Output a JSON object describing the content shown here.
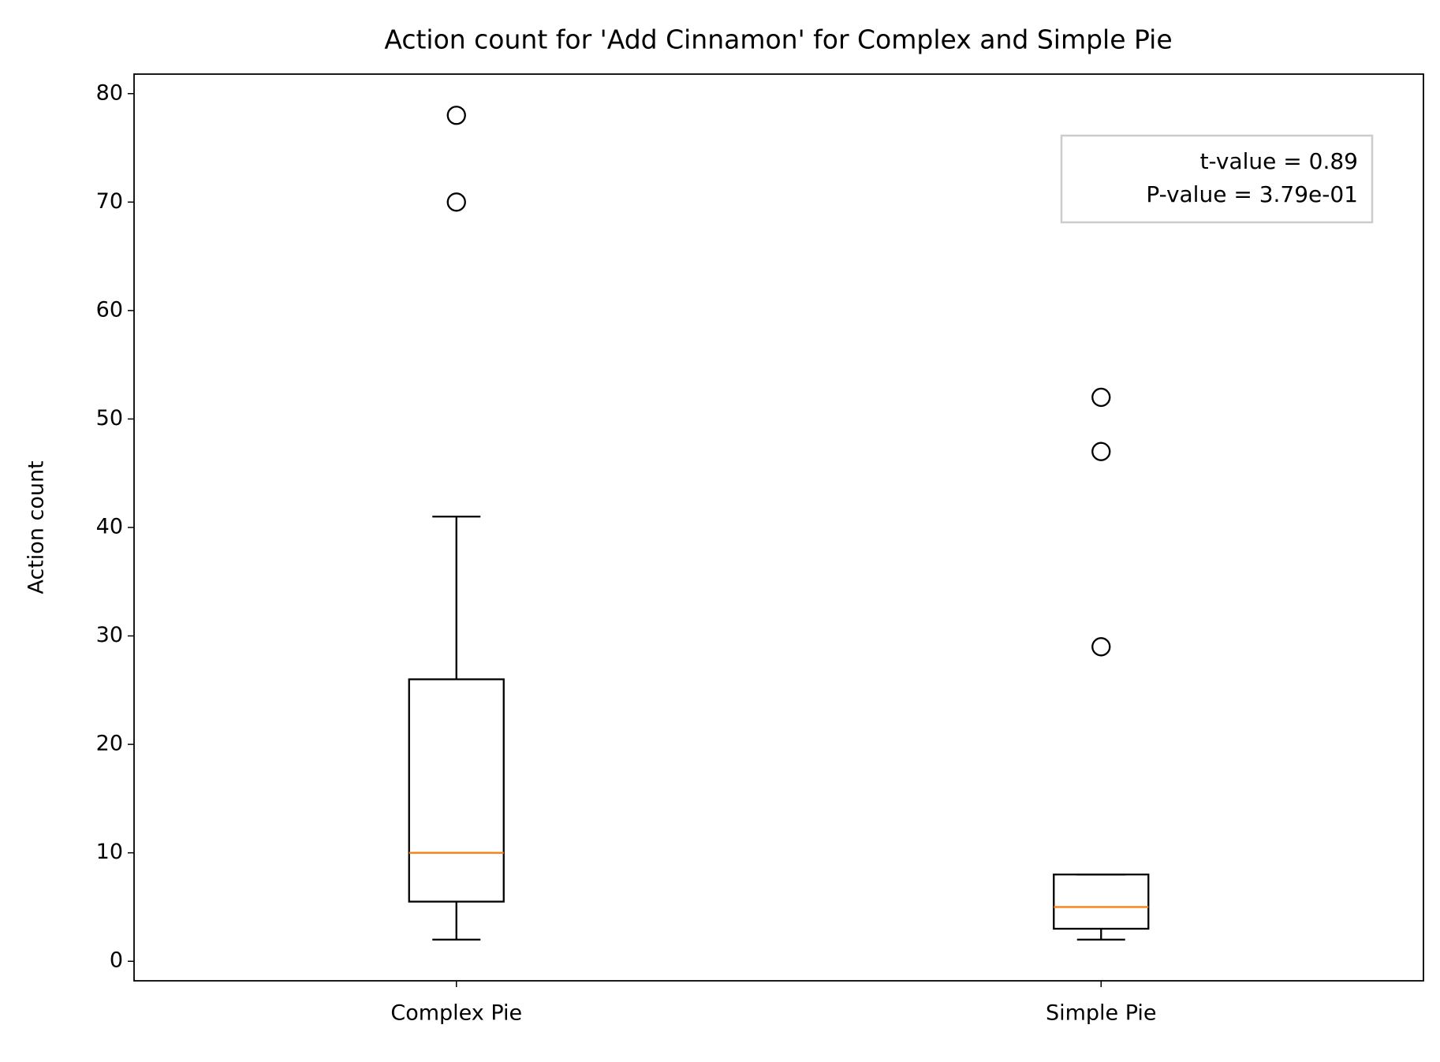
{
  "chart_data": {
    "type": "box",
    "title": "Action count for 'Add Cinnamon' for Complex and Simple Pie",
    "y_label": "Action count",
    "categories": [
      "Complex Pie",
      "Simple Pie"
    ],
    "boxes": [
      {
        "whislo": 2,
        "q1": 5.5,
        "med": 10,
        "q3": 26,
        "whishi": 41,
        "fliers": [
          70,
          78
        ]
      },
      {
        "whislo": 2,
        "q1": 3,
        "med": 5,
        "q3": 8,
        "whishi": 8,
        "fliers": [
          29,
          47,
          52
        ]
      }
    ],
    "box_color": "#000000",
    "median_color": "#ff7f0e",
    "ylim": [
      -1.8,
      81.8
    ],
    "yticks": [
      0,
      10,
      20,
      30,
      40,
      50,
      60,
      70,
      80
    ],
    "annotation": [
      "t-value = 0.89",
      "P-value = 3.79e-01"
    ]
  }
}
